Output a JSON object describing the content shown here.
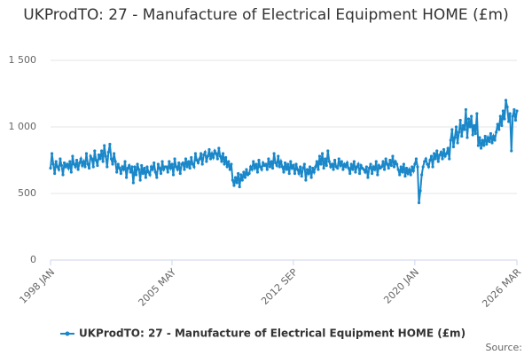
{
  "chart_data": {
    "type": "line",
    "title": "UKProdTO: 27 - Manufacture of Electrical Equipment HOME (£m)",
    "categories": [
      "1998 JAN",
      null,
      null,
      null,
      null,
      null,
      null,
      null,
      null,
      null,
      null,
      null,
      null,
      null,
      null,
      null,
      null,
      null,
      null,
      null,
      null,
      null,
      null,
      null,
      null,
      null,
      null,
      null,
      null,
      null,
      null,
      null,
      null,
      null,
      null,
      null,
      null,
      null,
      null,
      null,
      null,
      null,
      null,
      null,
      null,
      null,
      null,
      null,
      null,
      null,
      null,
      null,
      null,
      null,
      null,
      null,
      null,
      null,
      null,
      null,
      null,
      null,
      null,
      null,
      null,
      null,
      null,
      null,
      null,
      null,
      null,
      null,
      null,
      null,
      null,
      null,
      null,
      null,
      null,
      null,
      null,
      null,
      null,
      null,
      null,
      null,
      null,
      null,
      "2005 MAY",
      null,
      null,
      null,
      null,
      null,
      null,
      null,
      null,
      null,
      null,
      null,
      null,
      null,
      null,
      null,
      null,
      null,
      null,
      null,
      null,
      null,
      null,
      null,
      null,
      null,
      null,
      null,
      null,
      null,
      null,
      null,
      null,
      null,
      null,
      null,
      null,
      null,
      null,
      null,
      null,
      null,
      null,
      null,
      null,
      null,
      null,
      null,
      null,
      null,
      null,
      null,
      null,
      null,
      null,
      null,
      null,
      null,
      null,
      null,
      null,
      null,
      null,
      null,
      null,
      null,
      null,
      null,
      null,
      null,
      null,
      null,
      null,
      null,
      null,
      null,
      null,
      null,
      null,
      null,
      null,
      null,
      null,
      null,
      null,
      null,
      null,
      null,
      "2012 SEP",
      null,
      null,
      null,
      null,
      null,
      null,
      null,
      null,
      null,
      null,
      null,
      null,
      null,
      null,
      null,
      null,
      null,
      null,
      null,
      null,
      null,
      null,
      null,
      null,
      null,
      null,
      null,
      null,
      null,
      null,
      null,
      null,
      null,
      null,
      null,
      null,
      null,
      null,
      null,
      null,
      null,
      null,
      null,
      null,
      null,
      null,
      null,
      null,
      null,
      null,
      null,
      null,
      null,
      null,
      null,
      null,
      null,
      null,
      null,
      null,
      null,
      null,
      null,
      null,
      null,
      null,
      null,
      null,
      null,
      null,
      null,
      null,
      null,
      null,
      null,
      null,
      null,
      null,
      null,
      null,
      null,
      null,
      null,
      null,
      null,
      null,
      null,
      "2020 JAN",
      null,
      null,
      null,
      null,
      null,
      null,
      null,
      null,
      null,
      null,
      null,
      null,
      null,
      null,
      null,
      null,
      null,
      null,
      null,
      null,
      null,
      null,
      null,
      null,
      null,
      null,
      null,
      null,
      null,
      null,
      null,
      null,
      null,
      null,
      null,
      null,
      null,
      null,
      null,
      null,
      null,
      null,
      null,
      null,
      null,
      null,
      null,
      null,
      null,
      null,
      null,
      null,
      null,
      null,
      null,
      null,
      null,
      null,
      null,
      null,
      null,
      null,
      null,
      null,
      null,
      null,
      null,
      null,
      null,
      null,
      null,
      null,
      null,
      "2026 MAR"
    ],
    "series": [
      {
        "name": "UKProdTO: 27 - Manufacture of Electrical Equipment HOME (£m)",
        "color": "#1a87c9",
        "values": [
          690,
          800,
          720,
          650,
          740,
          700,
          680,
          760,
          710,
          640,
          730,
          700,
          720,
          690,
          740,
          660,
          780,
          720,
          700,
          750,
          680,
          730,
          760,
          710,
          740,
          700,
          800,
          720,
          690,
          780,
          760,
          700,
          820,
          750,
          710,
          790,
          760,
          820,
          740,
          860,
          780,
          700,
          810,
          870,
          760,
          720,
          800,
          740,
          660,
          720,
          690,
          650,
          700,
          680,
          740,
          620,
          690,
          710,
          660,
          700,
          580,
          700,
          640,
          720,
          680,
          600,
          710,
          650,
          690,
          620,
          700,
          660,
          640,
          700,
          680,
          730,
          660,
          620,
          720,
          690,
          650,
          740,
          680,
          700,
          700,
          660,
          740,
          690,
          720,
          640,
          760,
          700,
          680,
          730,
          650,
          720,
          730,
          680,
          760,
          700,
          740,
          690,
          770,
          720,
          700,
          800,
          750,
          730,
          760,
          800,
          720,
          790,
          810,
          740,
          780,
          830,
          760,
          800,
          770,
          820,
          800,
          760,
          840,
          780,
          740,
          800,
          720,
          770,
          700,
          740,
          680,
          720,
          600,
          560,
          620,
          580,
          650,
          550,
          640,
          600,
          660,
          620,
          680,
          640,
          650,
          700,
          680,
          740,
          690,
          720,
          660,
          750,
          700,
          680,
          730,
          710,
          720,
          680,
          760,
          700,
          740,
          690,
          800,
          730,
          710,
          780,
          700,
          740,
          700,
          660,
          730,
          680,
          720,
          650,
          740,
          690,
          710,
          650,
          720,
          680,
          650,
          700,
          630,
          690,
          720,
          600,
          680,
          650,
          700,
          620,
          690,
          660,
          700,
          740,
          680,
          780,
          720,
          800,
          690,
          760,
          710,
          820,
          740,
          700,
          720,
          680,
          750,
          700,
          690,
          760,
          710,
          740,
          680,
          720,
          700,
          730,
          690,
          650,
          720,
          680,
          740,
          660,
          700,
          720,
          650,
          710,
          690,
          680,
          660,
          700,
          620,
          690,
          720,
          650,
          700,
          680,
          740,
          640,
          710,
          690,
          700,
          740,
          680,
          760,
          720,
          690,
          750,
          710,
          780,
          700,
          740,
          720,
          680,
          640,
          700,
          660,
          720,
          630,
          690,
          650,
          680,
          640,
          700,
          670,
          720,
          760,
          700,
          430,
          520,
          640,
          700,
          740,
          760,
          720,
          700,
          750,
          780,
          700,
          800,
          760,
          820,
          740,
          790,
          810,
          760,
          830,
          780,
          800,
          840,
          760,
          900,
          980,
          850,
          920,
          1000,
          880,
          960,
          1050,
          930,
          1010,
          980,
          1130,
          920,
          1060,
          1000,
          1080,
          940,
          1010,
          950,
          1100,
          860,
          920,
          840,
          900,
          860,
          930,
          870,
          920,
          890,
          950,
          880,
          930,
          900,
          960,
          1020,
          980,
          1080,
          1010,
          1120,
          1060,
          1200,
          1150,
          1040,
          1100,
          820,
          1080,
          1130,
          1050,
          1120
        ]
      }
    ],
    "ylim": [
      0,
      1500
    ],
    "yticks": [
      0,
      500,
      {
        "value": 1000,
        "label": "1 000"
      },
      {
        "value": 1500,
        "label": "1 500"
      }
    ],
    "grid": true,
    "legend": "bottom",
    "source": "Source:"
  }
}
